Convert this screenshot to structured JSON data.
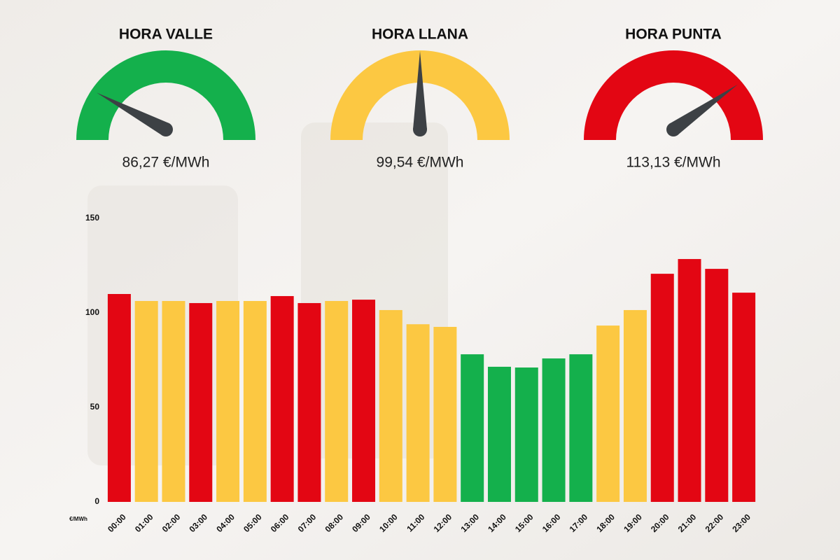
{
  "gauges": [
    {
      "title": "HORA VALLE",
      "label": "86,27 €/MWh",
      "color": "#14b04c"
    },
    {
      "title": "HORA LLANA",
      "label": "99,54 €/MWh",
      "color": "#fcc842"
    },
    {
      "title": "HORA PUNTA",
      "label": "113,13 €/MWh",
      "color": "#e30613"
    }
  ],
  "chart_data": {
    "type": "bar",
    "y_label": "€/MWh",
    "categories": [
      "00:00",
      "01:00",
      "02:00",
      "03:00",
      "04:00",
      "05:00",
      "06:00",
      "07:00",
      "08:00",
      "09:00",
      "10:00",
      "11:00",
      "12:00",
      "13:00",
      "14:00",
      "15:00",
      "16:00",
      "17:00",
      "18:00",
      "19:00",
      "20:00",
      "21:00",
      "22:00",
      "23:00"
    ],
    "values": [
      110,
      106.3,
      106.3,
      105.2,
      106.3,
      106.3,
      108.9,
      105.2,
      106.3,
      107,
      101.5,
      94,
      92.6,
      78.1,
      71.5,
      71.1,
      75.9,
      78.1,
      93.3,
      101.5,
      120.7,
      128.5,
      123.3,
      110.7
    ],
    "colors": [
      "#e30613",
      "#fcc842",
      "#fcc842",
      "#e30613",
      "#fcc842",
      "#fcc842",
      "#e30613",
      "#e30613",
      "#fcc842",
      "#e30613",
      "#fcc842",
      "#fcc842",
      "#fcc842",
      "#14b04c",
      "#14b04c",
      "#14b04c",
      "#14b04c",
      "#14b04c",
      "#fcc842",
      "#fcc842",
      "#e30613",
      "#e30613",
      "#e30613",
      "#e30613"
    ],
    "ylim": [
      0,
      150
    ],
    "yticks": [
      0,
      50,
      100,
      150
    ],
    "grid": false
  }
}
